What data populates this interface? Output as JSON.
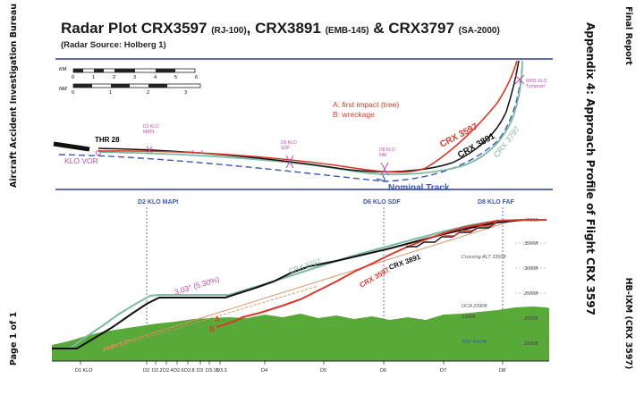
{
  "margin_left": {
    "top": "Aircraft Accident Investigation Bureau",
    "bottom": "Page 1 of 1"
  },
  "margin_right": {
    "top": "Final Report",
    "bottom": "HB-IXM (CRX 3597)"
  },
  "appendix_heading": "Appendix 4: Approach Profile of Flight CRX 3597",
  "figure": {
    "title_main": "Radar Plot CRX3597",
    "title_rj": "(RJ-100)",
    "title_sep1": ", CRX3891",
    "title_emb": "(EMB-145)",
    "title_sep2": " & CRX3797",
    "title_sa": "(SA-2000)",
    "subtitle": "(Radar Source: Holberg 1)",
    "scale": {
      "km_label": "KM",
      "nm_label": "NM",
      "km_ticks": [
        "0",
        "1",
        "2",
        "3",
        "4",
        "5",
        "6"
      ],
      "nm_ticks": [
        "0",
        "1",
        "2",
        "3"
      ]
    },
    "plan": {
      "thr": "THR 28",
      "vor": "KLO VOR",
      "mapt": [
        "D2 KLO",
        "MAPt"
      ],
      "sdf": [
        "D6 KLO",
        "SDF"
      ],
      "faf": [
        "D8 KLO",
        "FAF"
      ],
      "r091": [
        "R091 KLO",
        "Turnpoint"
      ],
      "legend_a": "A: first impact (tree)",
      "legend_b": "B: wreckage",
      "mark_a": "A",
      "mark_b": "B",
      "nominal": "Nominal Track",
      "lbl_3597": "CRX 3597",
      "lbl_3891": "CRX 3891",
      "lbl_3797": "CRX 3797"
    },
    "profile": {
      "head_mapt": "D2 KLO MAPt",
      "head_sdf": "D6 KLO SDF",
      "head_faf": "D8 KLO FAF",
      "alt_labels": [
        "4000ft",
        "3500ft",
        "3000ft",
        "2500ft",
        "2000ft",
        "1500ft"
      ],
      "crossing": "Crossing ALT 3360ft",
      "oca": "OCA 2390ft",
      "oca2": "2390ft",
      "sdf_alt": "SDF 4000ft",
      "gs_label": "3.03° (5.30%)",
      "papi": "PAPI 3.7°",
      "mark_a": "A",
      "mark_b": "B",
      "lbl_3797": "CRX 3797",
      "lbl_3597": "CRX 3597",
      "lbl_3891": "CRX 3891",
      "x_ticks": [
        "D1 KLO",
        "D2",
        "D2.2",
        "D2.4",
        "D2.6",
        "D2.8",
        "D3",
        "D3.15",
        "D3.3",
        "D4",
        "D5",
        "D6",
        "D7",
        "D8"
      ]
    }
  },
  "colors": {
    "crx3597": "#d63a2a",
    "crx3891": "#111111",
    "crx3797": "#7fb8a4",
    "nominal": "#3a56b8",
    "terrain": "#58a83a",
    "frame": "#2c3a9a",
    "glideslope": "#e08a5a",
    "markers": "#c24aa8"
  }
}
